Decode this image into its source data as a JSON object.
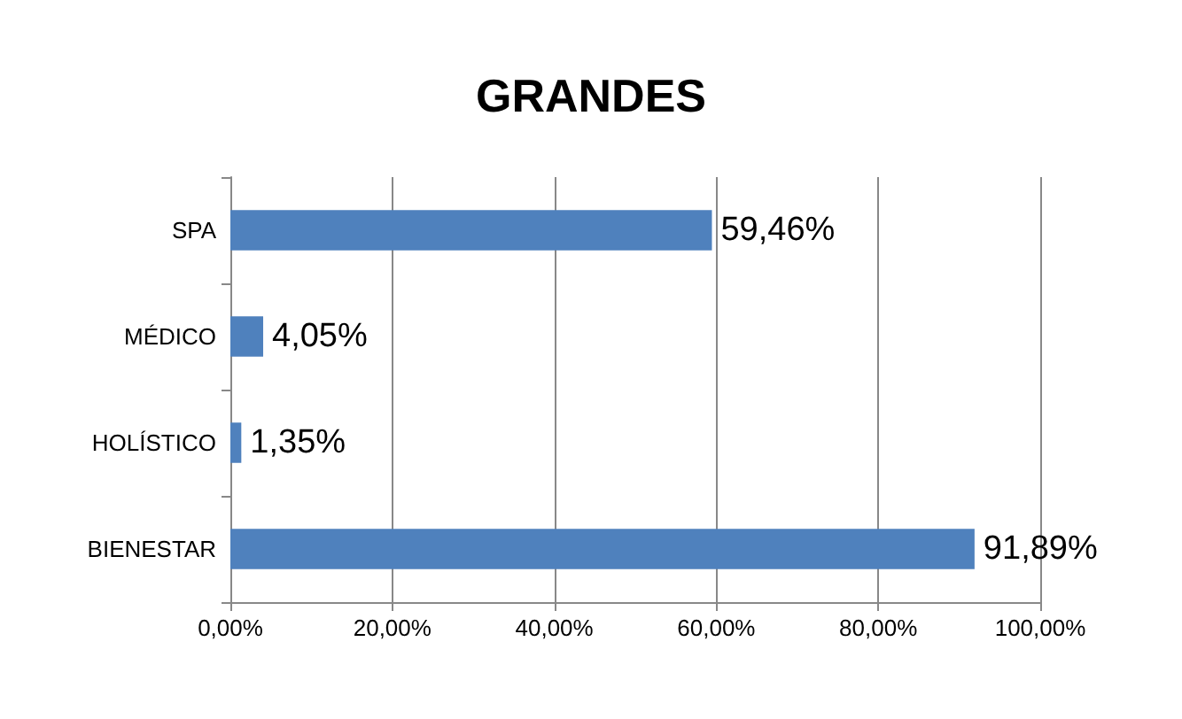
{
  "chart_data": {
    "type": "bar",
    "orientation": "horizontal",
    "title": "GRANDES",
    "categories": [
      "SPA",
      "MÉDICO",
      "HOLÍSTICO",
      "BIENESTAR"
    ],
    "values": [
      59.46,
      4.05,
      1.35,
      91.89
    ],
    "value_labels": [
      "59,46%",
      "4,05%",
      "1,35%",
      "91,89%"
    ],
    "color": "#4f81bd",
    "xlim": [
      0,
      100
    ],
    "xticks": [
      {
        "value": 0,
        "label": "0,00%"
      },
      {
        "value": 20,
        "label": "20,00%"
      },
      {
        "value": 40,
        "label": "40,00%"
      },
      {
        "value": 60,
        "label": "60,00%"
      },
      {
        "value": 80,
        "label": "80,00%"
      },
      {
        "value": 100,
        "label": "100,00%"
      }
    ],
    "grid": "x"
  }
}
